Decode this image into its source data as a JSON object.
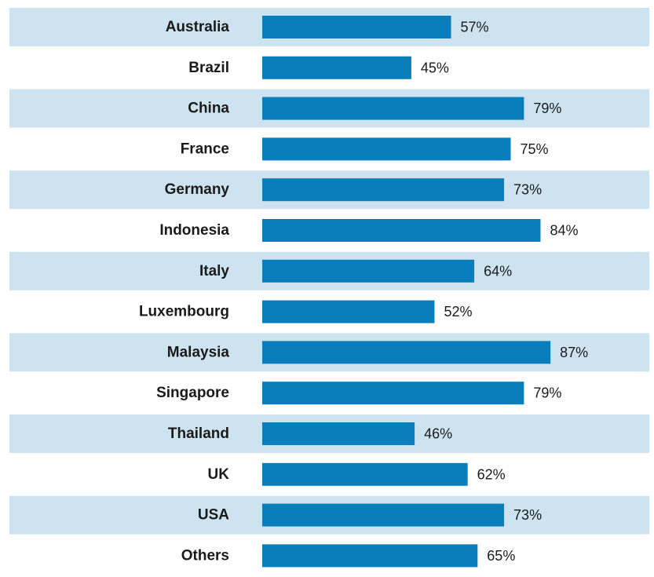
{
  "chart_data": {
    "type": "bar",
    "orientation": "horizontal",
    "title": "",
    "xlabel": "",
    "ylabel": "",
    "categories": [
      "Australia",
      "Brazil",
      "China",
      "France",
      "Germany",
      "Indonesia",
      "Italy",
      "Luxembourg",
      "Malaysia",
      "Singapore",
      "Thailand",
      "UK",
      "USA",
      "Others"
    ],
    "values": [
      57,
      45,
      79,
      75,
      73,
      84,
      64,
      52,
      87,
      79,
      46,
      62,
      73,
      65
    ],
    "value_labels": [
      "57%",
      "45%",
      "79%",
      "75%",
      "73%",
      "84%",
      "64%",
      "52%",
      "87%",
      "79%",
      "46%",
      "62%",
      "73%",
      "65%"
    ],
    "xlim": [
      0,
      100
    ],
    "grid": false,
    "legend": "none",
    "colors": {
      "bar": "#0a7dbd",
      "band": "#cde4f0",
      "text": "#1a1a1a"
    }
  }
}
